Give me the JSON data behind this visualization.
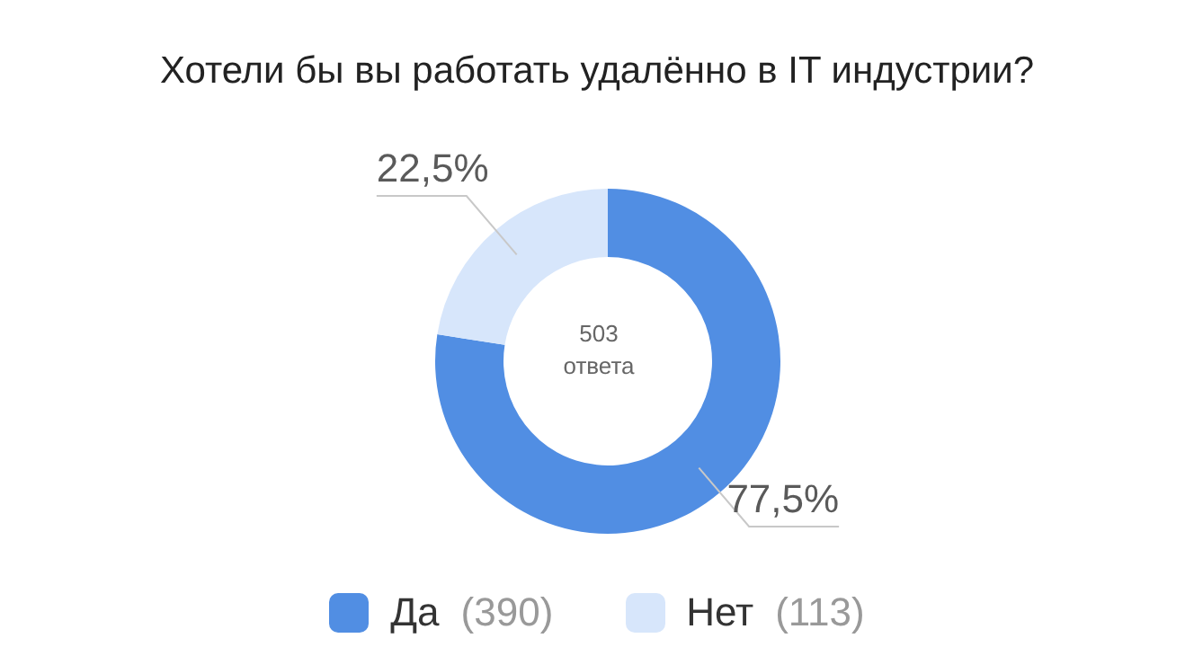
{
  "chart_data": {
    "type": "donut",
    "title": "Хотели бы вы работать удалённо в IT индустрии?",
    "categories": [
      "Да (390)",
      "Нет (113)"
    ],
    "values": [
      77.5,
      22.5
    ],
    "value_labels": [
      "77,5%",
      "22,5%"
    ],
    "colors": [
      "#518ee3",
      "#d7e6fb"
    ],
    "annotations": [
      "503 ответа"
    ],
    "legend": "bottom"
  }
}
